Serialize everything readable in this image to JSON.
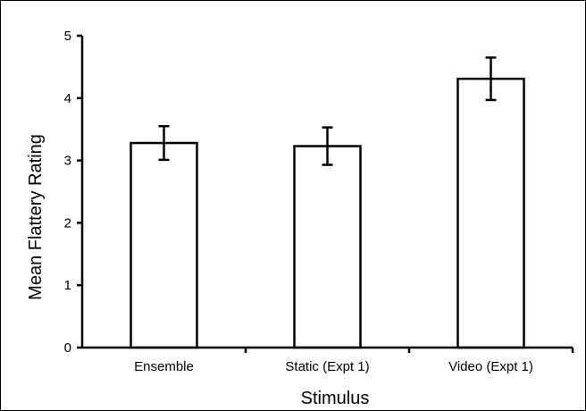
{
  "chart_data": {
    "type": "bar",
    "categories": [
      "Ensemble",
      "Static (Expt 1)",
      "Video (Expt 1)"
    ],
    "values": [
      3.28,
      3.23,
      4.31
    ],
    "errors": [
      0.27,
      0.3,
      0.34
    ],
    "xlabel": "Stimulus",
    "ylabel": "Mean Flattery Rating",
    "ylim": [
      0,
      5
    ],
    "yticks": [
      "0",
      "1",
      "2",
      "3",
      "4",
      "5"
    ],
    "grid": false,
    "legend": "none",
    "colors": {
      "bar_fill": "#ffffff",
      "bar_stroke": "#000000",
      "axis": "#000000"
    }
  }
}
